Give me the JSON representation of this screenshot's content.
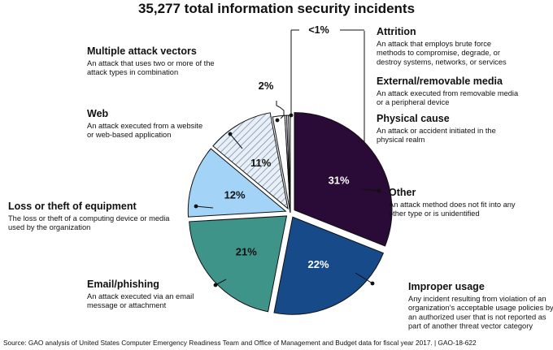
{
  "chart_data": {
    "type": "pie",
    "title": "35,277 total information security incidents",
    "source": "Source: GAO analysis of United States Computer Emergency Readiness Team and Office of Management and Budget data for fiscal year 2017.  |  GAO-18-622",
    "slices": [
      {
        "name": "Other",
        "value": 31,
        "label": "31%",
        "description": [
          "An attack method does not fit into any",
          "other type or is unidentified"
        ],
        "color": "#2a0a36",
        "text_color": "#ffffff",
        "pattern": false
      },
      {
        "name": "Improper usage",
        "value": 22,
        "label": "22%",
        "description": [
          "Any incident resulting from violation of an",
          "organization’s acceptable usage policies by",
          "an authorized user that is not reported as",
          "part of another threat vector category"
        ],
        "color": "#174a88",
        "text_color": "#ffffff",
        "pattern": false
      },
      {
        "name": "Email/phishing",
        "value": 21,
        "label": "21%",
        "description": [
          "An attack executed via an email",
          "message or attachment"
        ],
        "color": "#3f948a",
        "text_color": "#111111",
        "pattern": false
      },
      {
        "name": "Loss or theft of equipment",
        "value": 12,
        "label": "12%",
        "description": [
          "The loss or theft of a computing device or media",
          "used by the organization"
        ],
        "color": "#a3d4f7",
        "text_color": "#111111",
        "pattern": false
      },
      {
        "name": "Web",
        "value": 11,
        "label": "11%",
        "description": [
          "An attack executed from a website",
          "or web-based application"
        ],
        "color": "#e9eff6",
        "text_color": "#111111",
        "pattern": true
      },
      {
        "name": "Multiple attack vectors",
        "value": 2,
        "label": "2%",
        "description": [
          "An attack that uses two or more of the",
          "attack types in combination"
        ],
        "color": "#ffffff",
        "text_color": "#111111",
        "pattern": false
      },
      {
        "name": "Attrition",
        "value": 0.3,
        "label": "",
        "description": [
          "An attack that employs brute force",
          "methods to compromise, degrade, or",
          "destroy systems, networks, or services"
        ],
        "color": "#ffffff",
        "text_color": "#111111",
        "pattern": false
      },
      {
        "name": "External/removable media",
        "value": 0.3,
        "label": "",
        "description": [
          "An attack executed from removable media",
          "or a peripheral device"
        ],
        "color": "#ffffff",
        "text_color": "#111111",
        "pattern": false
      },
      {
        "name": "Physical cause",
        "value": 0.3,
        "label": "",
        "description": [
          "An attack or accident initiated in the",
          "physical realm"
        ],
        "color": "#ffffff",
        "text_color": "#111111",
        "pattern": false
      }
    ],
    "group_label": "<1%",
    "group_members": [
      "Attrition",
      "External/removable media",
      "Physical cause"
    ]
  }
}
